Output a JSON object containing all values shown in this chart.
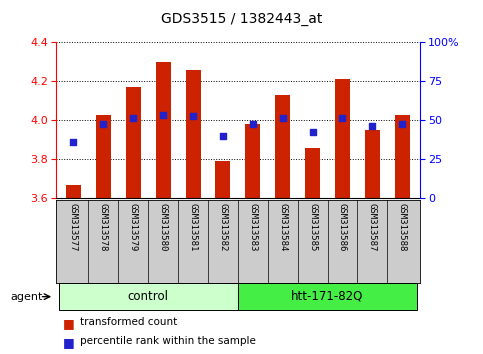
{
  "title": "GDS3515 / 1382443_at",
  "samples": [
    "GSM313577",
    "GSM313578",
    "GSM313579",
    "GSM313580",
    "GSM313581",
    "GSM313582",
    "GSM313583",
    "GSM313584",
    "GSM313585",
    "GSM313586",
    "GSM313587",
    "GSM313588"
  ],
  "bar_values": [
    3.67,
    4.03,
    4.17,
    4.3,
    4.26,
    3.79,
    3.98,
    4.13,
    3.86,
    4.21,
    3.95,
    4.03
  ],
  "blue_values": [
    3.89,
    3.98,
    4.01,
    4.03,
    4.02,
    3.92,
    3.98,
    4.01,
    3.94,
    4.01,
    3.97,
    3.98
  ],
  "ylim_left": [
    3.6,
    4.4
  ],
  "ylim_right": [
    0,
    100
  ],
  "yticks_left": [
    3.6,
    3.8,
    4.0,
    4.2,
    4.4
  ],
  "yticks_right": [
    0,
    25,
    50,
    75,
    100
  ],
  "ytick_labels_right": [
    "0",
    "25",
    "50",
    "75",
    "100%"
  ],
  "bar_color": "#cc2200",
  "blue_color": "#2222cc",
  "agent_groups": [
    {
      "label": "control",
      "n_samples": 6,
      "color": "#ccffcc"
    },
    {
      "label": "htt-171-82Q",
      "n_samples": 6,
      "color": "#44ee44"
    }
  ],
  "agent_label": "agent",
  "legend_bar_label": "transformed count",
  "legend_dot_label": "percentile rank within the sample",
  "background_color": "#ffffff",
  "tick_area_color": "#cccccc",
  "bar_width": 0.5
}
